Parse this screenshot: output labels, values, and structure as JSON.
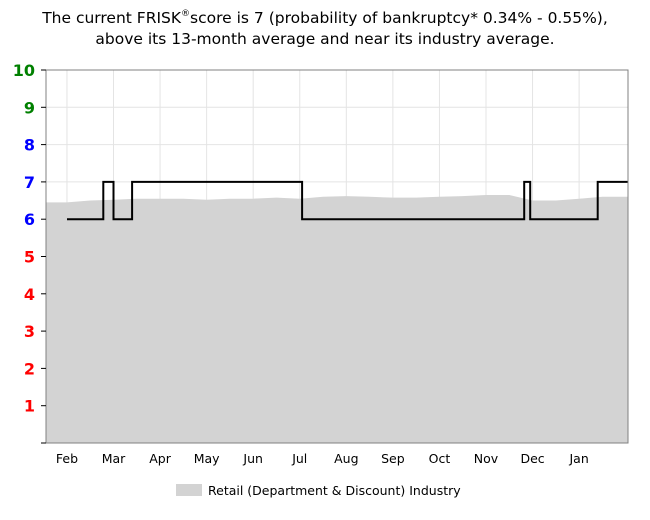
{
  "title": {
    "part1": "The current FRISK",
    "registered": "®",
    "part2": "score is 7 (probability of bankruptcy* 0.34% - 0.55%),",
    "line2": "above its 13-month average and near its industry average."
  },
  "colors": {
    "score_high": "#008000",
    "score_mid": "#0000ff",
    "score_low": "#ff0000",
    "industry_fill": "#d3d3d3",
    "score_line": "#000000",
    "grid": "#e4e4e4"
  },
  "chart_data": {
    "type": "area",
    "title": "",
    "xlabel": "",
    "ylabel": "",
    "ylim": [
      0,
      10
    ],
    "yticks": [
      1,
      2,
      3,
      4,
      5,
      6,
      7,
      8,
      9,
      10
    ],
    "y_tick_colors": {
      "1": "#ff0000",
      "2": "#ff0000",
      "3": "#ff0000",
      "4": "#ff0000",
      "5": "#ff0000",
      "6": "#0000ff",
      "7": "#0000ff",
      "8": "#0000ff",
      "9": "#008000",
      "10": "#008000"
    },
    "x_labels": [
      "Feb",
      "Mar",
      "Apr",
      "May",
      "Jun",
      "Jul",
      "Aug",
      "Sep",
      "Oct",
      "Nov",
      "Dec",
      "Jan"
    ],
    "grid": true,
    "legend_position": "bottom",
    "legend": [
      "Retail (Department & Discount) Industry"
    ],
    "series": [
      {
        "name": "Retail (Department & Discount) Industry",
        "kind": "area",
        "color": "#d3d3d3",
        "x": [
          0,
          0.5,
          1,
          1.5,
          2,
          2.5,
          3,
          3.5,
          4,
          4.5,
          5,
          5.5,
          6,
          6.5,
          7,
          7.5,
          8,
          8.5,
          9,
          9.5,
          10,
          10.5,
          11,
          11.5,
          11.75
        ],
        "y": [
          6.45,
          6.5,
          6.52,
          6.55,
          6.55,
          6.55,
          6.52,
          6.55,
          6.55,
          6.58,
          6.55,
          6.6,
          6.62,
          6.6,
          6.58,
          6.58,
          6.6,
          6.62,
          6.65,
          6.65,
          6.5,
          6.5,
          6.55,
          6.6,
          6.6
        ]
      },
      {
        "kind": "step",
        "color": "#000000",
        "points": [
          {
            "x": 0,
            "y": 6
          },
          {
            "x": 0.78,
            "y": 6
          },
          {
            "x": 0.78,
            "y": 7
          },
          {
            "x": 1.0,
            "y": 7
          },
          {
            "x": 1.0,
            "y": 6
          },
          {
            "x": 1.4,
            "y": 6
          },
          {
            "x": 1.4,
            "y": 7
          },
          {
            "x": 5.05,
            "y": 7
          },
          {
            "x": 5.05,
            "y": 6
          },
          {
            "x": 9.82,
            "y": 6
          },
          {
            "x": 9.82,
            "y": 7
          },
          {
            "x": 9.95,
            "y": 7
          },
          {
            "x": 9.95,
            "y": 6
          },
          {
            "x": 11.4,
            "y": 6
          },
          {
            "x": 11.4,
            "y": 7
          },
          {
            "x": 12.05,
            "y": 7
          }
        ]
      }
    ]
  }
}
